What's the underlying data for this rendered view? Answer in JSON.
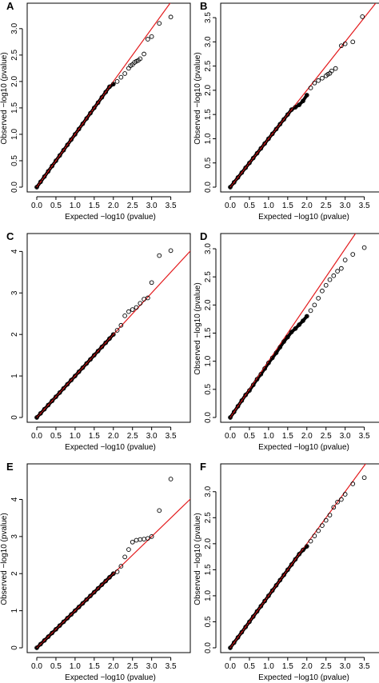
{
  "chart_data": [
    {
      "panel": "A",
      "type": "scatter",
      "xlabel": "Expected −log10 (pvalue)",
      "ylabel": "Observed −log10 (pvalue)",
      "xticks": [
        0.0,
        0.5,
        1.0,
        1.5,
        2.0,
        2.5,
        3.0,
        3.5
      ],
      "xtick_labels": [
        "0.0",
        "0.5",
        "1.0",
        "1.5",
        "2.0",
        "2.5",
        "3.0",
        "3.5"
      ],
      "yticks": [
        0.0,
        0.5,
        1.0,
        1.5,
        2.0,
        2.5,
        3.0
      ],
      "ytick_labels": [
        "0.0",
        "0.5",
        "1.0",
        "1.5",
        "2.0",
        "2.5",
        "3.0"
      ],
      "xlim": [
        0,
        3.55
      ],
      "ylim": [
        0,
        3.3
      ],
      "reference_line": {
        "color": "#e31a1c",
        "slope": 1,
        "intercept": 0
      },
      "points": [
        [
          0.0,
          0.0
        ],
        [
          0.1,
          0.1
        ],
        [
          0.2,
          0.2
        ],
        [
          0.3,
          0.3
        ],
        [
          0.4,
          0.4
        ],
        [
          0.5,
          0.5
        ],
        [
          0.6,
          0.6
        ],
        [
          0.7,
          0.7
        ],
        [
          0.8,
          0.8
        ],
        [
          0.9,
          0.9
        ],
        [
          1.0,
          1.0
        ],
        [
          1.1,
          1.1
        ],
        [
          1.2,
          1.2
        ],
        [
          1.3,
          1.3
        ],
        [
          1.4,
          1.4
        ],
        [
          1.5,
          1.5
        ],
        [
          1.6,
          1.6
        ],
        [
          1.7,
          1.7
        ],
        [
          1.8,
          1.8
        ],
        [
          1.9,
          1.9
        ],
        [
          2.0,
          1.95
        ],
        [
          2.1,
          2.0
        ],
        [
          2.2,
          2.08
        ],
        [
          2.3,
          2.15
        ],
        [
          2.4,
          2.25
        ],
        [
          2.45,
          2.3
        ],
        [
          2.5,
          2.32
        ],
        [
          2.55,
          2.36
        ],
        [
          2.6,
          2.38
        ],
        [
          2.65,
          2.4
        ],
        [
          2.7,
          2.43
        ],
        [
          2.8,
          2.52
        ],
        [
          2.9,
          2.8
        ],
        [
          3.0,
          2.85
        ],
        [
          3.2,
          3.1
        ],
        [
          3.5,
          3.22
        ]
      ]
    },
    {
      "panel": "B",
      "type": "scatter",
      "xlabel": "Expected −log10 (pvalue)",
      "ylabel": "Observed −log10 (pvalue)",
      "xticks": [
        0.0,
        0.5,
        1.0,
        1.5,
        2.0,
        2.5,
        3.0,
        3.5
      ],
      "xtick_labels": [
        "0.0",
        "0.5",
        "1.0",
        "1.5",
        "2.0",
        "2.5",
        "3.0",
        "3.5"
      ],
      "yticks": [
        0.0,
        0.5,
        1.0,
        1.5,
        2.0,
        2.5,
        3.0,
        3.5
      ],
      "ytick_labels": [
        "0.0",
        "0.5",
        "1.0",
        "1.5",
        "2.0",
        "2.5",
        "3.0",
        "3.5"
      ],
      "xlim": [
        0,
        3.55
      ],
      "ylim": [
        0,
        3.6
      ],
      "reference_line": {
        "color": "#e31a1c",
        "slope": 1,
        "intercept": 0
      },
      "points": [
        [
          0.0,
          0.0
        ],
        [
          0.1,
          0.1
        ],
        [
          0.2,
          0.2
        ],
        [
          0.3,
          0.3
        ],
        [
          0.4,
          0.4
        ],
        [
          0.5,
          0.5
        ],
        [
          0.6,
          0.6
        ],
        [
          0.7,
          0.7
        ],
        [
          0.8,
          0.8
        ],
        [
          0.9,
          0.9
        ],
        [
          1.0,
          1.0
        ],
        [
          1.1,
          1.1
        ],
        [
          1.2,
          1.2
        ],
        [
          1.3,
          1.3
        ],
        [
          1.4,
          1.4
        ],
        [
          1.5,
          1.5
        ],
        [
          1.6,
          1.6
        ],
        [
          1.7,
          1.65
        ],
        [
          1.8,
          1.7
        ],
        [
          1.9,
          1.78
        ],
        [
          2.0,
          1.9
        ],
        [
          2.1,
          2.05
        ],
        [
          2.2,
          2.15
        ],
        [
          2.3,
          2.2
        ],
        [
          2.4,
          2.25
        ],
        [
          2.5,
          2.3
        ],
        [
          2.55,
          2.33
        ],
        [
          2.6,
          2.35
        ],
        [
          2.65,
          2.4
        ],
        [
          2.75,
          2.45
        ],
        [
          2.9,
          2.92
        ],
        [
          3.0,
          2.96
        ],
        [
          3.2,
          3.0
        ],
        [
          3.45,
          3.52
        ]
      ]
    },
    {
      "panel": "C",
      "type": "scatter",
      "xlabel": "Expected −log10 (pvalue)",
      "ylabel": "",
      "xticks": [
        0.0,
        0.5,
        1.0,
        1.5,
        2.0,
        2.5,
        3.0,
        3.5
      ],
      "xtick_labels": [
        "0.0",
        "0.5",
        "1.0",
        "1.5",
        "2.0",
        "2.5",
        "3.0",
        "3.5"
      ],
      "yticks": [
        0,
        1,
        2,
        3,
        4
      ],
      "ytick_labels": [
        "0",
        "1",
        "2",
        "3",
        "4"
      ],
      "xlim": [
        0,
        3.55
      ],
      "ylim": [
        0,
        4.2
      ],
      "reference_line": {
        "color": "#e31a1c",
        "slope": 1,
        "intercept": 0
      },
      "points": [
        [
          0.0,
          0.0
        ],
        [
          0.1,
          0.1
        ],
        [
          0.2,
          0.2
        ],
        [
          0.3,
          0.3
        ],
        [
          0.4,
          0.4
        ],
        [
          0.5,
          0.5
        ],
        [
          0.6,
          0.6
        ],
        [
          0.7,
          0.7
        ],
        [
          0.8,
          0.8
        ],
        [
          0.9,
          0.9
        ],
        [
          1.0,
          1.0
        ],
        [
          1.1,
          1.1
        ],
        [
          1.2,
          1.2
        ],
        [
          1.3,
          1.3
        ],
        [
          1.4,
          1.4
        ],
        [
          1.5,
          1.5
        ],
        [
          1.6,
          1.6
        ],
        [
          1.7,
          1.7
        ],
        [
          1.8,
          1.8
        ],
        [
          1.9,
          1.9
        ],
        [
          2.0,
          2.0
        ],
        [
          2.1,
          2.1
        ],
        [
          2.2,
          2.22
        ],
        [
          2.3,
          2.45
        ],
        [
          2.4,
          2.55
        ],
        [
          2.5,
          2.6
        ],
        [
          2.6,
          2.65
        ],
        [
          2.7,
          2.75
        ],
        [
          2.8,
          2.85
        ],
        [
          2.9,
          2.88
        ],
        [
          3.0,
          3.25
        ],
        [
          3.2,
          3.9
        ],
        [
          3.5,
          4.02
        ]
      ]
    },
    {
      "panel": "D",
      "type": "scatter",
      "xlabel": "Expected −log10 (pvalue)",
      "ylabel": "Observed −log10 (pvalue)",
      "xticks": [
        0.0,
        0.5,
        1.0,
        1.5,
        2.0,
        2.5,
        3.0,
        3.5
      ],
      "xtick_labels": [
        "0.0",
        "0.5",
        "1.0",
        "1.5",
        "2.0",
        "2.5",
        "3.0",
        "3.5"
      ],
      "yticks": [
        0.0,
        0.5,
        1.0,
        1.5,
        2.0,
        2.5,
        3.0
      ],
      "ytick_labels": [
        "0.0",
        "0.5",
        "1.0",
        "1.5",
        "2.0",
        "2.5",
        "3.0"
      ],
      "xlim": [
        0,
        3.55
      ],
      "ylim": [
        0,
        3.1
      ],
      "reference_line": {
        "color": "#e31a1c",
        "slope": 1,
        "intercept": 0
      },
      "points": [
        [
          0.0,
          0.0
        ],
        [
          0.1,
          0.1
        ],
        [
          0.2,
          0.2
        ],
        [
          0.3,
          0.3
        ],
        [
          0.4,
          0.4
        ],
        [
          0.5,
          0.48
        ],
        [
          0.6,
          0.58
        ],
        [
          0.7,
          0.68
        ],
        [
          0.8,
          0.77
        ],
        [
          0.9,
          0.87
        ],
        [
          1.0,
          0.97
        ],
        [
          1.1,
          1.06
        ],
        [
          1.2,
          1.15
        ],
        [
          1.3,
          1.25
        ],
        [
          1.4,
          1.35
        ],
        [
          1.5,
          1.43
        ],
        [
          1.6,
          1.52
        ],
        [
          1.7,
          1.58
        ],
        [
          1.8,
          1.65
        ],
        [
          1.9,
          1.72
        ],
        [
          2.0,
          1.8
        ],
        [
          2.1,
          1.9
        ],
        [
          2.2,
          2.0
        ],
        [
          2.3,
          2.12
        ],
        [
          2.4,
          2.25
        ],
        [
          2.5,
          2.35
        ],
        [
          2.6,
          2.45
        ],
        [
          2.7,
          2.52
        ],
        [
          2.8,
          2.6
        ],
        [
          2.9,
          2.65
        ],
        [
          3.0,
          2.8
        ],
        [
          3.2,
          2.9
        ],
        [
          3.5,
          3.02
        ]
      ]
    },
    {
      "panel": "E",
      "type": "scatter",
      "xlabel": "Expected −log10 (pvalue)",
      "ylabel": "Observed −log10 (pvalue)",
      "xticks": [
        0.0,
        0.5,
        1.0,
        1.5,
        2.0,
        2.5,
        3.0,
        3.5
      ],
      "xtick_labels": [
        "0.0",
        "0.5",
        "1.0",
        "1.5",
        "2.0",
        "2.5",
        "3.0",
        "3.5"
      ],
      "yticks": [
        0,
        1,
        2,
        3,
        4
      ],
      "ytick_labels": [
        "0",
        "1",
        "2",
        "3",
        "4"
      ],
      "xlim": [
        0,
        3.55
      ],
      "ylim": [
        0,
        4.7
      ],
      "reference_line": {
        "color": "#e31a1c",
        "slope": 1,
        "intercept": 0
      },
      "points": [
        [
          0.0,
          0.0
        ],
        [
          0.1,
          0.1
        ],
        [
          0.2,
          0.2
        ],
        [
          0.3,
          0.3
        ],
        [
          0.4,
          0.4
        ],
        [
          0.5,
          0.5
        ],
        [
          0.6,
          0.6
        ],
        [
          0.7,
          0.7
        ],
        [
          0.8,
          0.8
        ],
        [
          0.9,
          0.9
        ],
        [
          1.0,
          1.0
        ],
        [
          1.1,
          1.1
        ],
        [
          1.2,
          1.2
        ],
        [
          1.3,
          1.3
        ],
        [
          1.4,
          1.4
        ],
        [
          1.5,
          1.5
        ],
        [
          1.6,
          1.6
        ],
        [
          1.7,
          1.7
        ],
        [
          1.8,
          1.8
        ],
        [
          1.9,
          1.9
        ],
        [
          2.0,
          2.0
        ],
        [
          2.1,
          2.05
        ],
        [
          2.2,
          2.2
        ],
        [
          2.3,
          2.45
        ],
        [
          2.4,
          2.65
        ],
        [
          2.5,
          2.85
        ],
        [
          2.6,
          2.9
        ],
        [
          2.7,
          2.92
        ],
        [
          2.8,
          2.93
        ],
        [
          2.9,
          2.95
        ],
        [
          3.0,
          3.0
        ],
        [
          3.2,
          3.7
        ],
        [
          3.5,
          4.55
        ]
      ]
    },
    {
      "panel": "F",
      "type": "scatter",
      "xlabel": "Expected −log10 (pvalue)",
      "ylabel": "Observed −log10 (pvalue)",
      "xticks": [
        0.0,
        0.5,
        1.0,
        1.5,
        2.0,
        2.5,
        3.0,
        3.5
      ],
      "xtick_labels": [
        "0.0",
        "0.5",
        "1.0",
        "1.5",
        "2.0",
        "2.5",
        "3.0",
        "3.5"
      ],
      "yticks": [
        0.0,
        0.5,
        1.0,
        1.5,
        2.0,
        2.5,
        3.0
      ],
      "ytick_labels": [
        "0.0",
        "0.5",
        "1.0",
        "1.5",
        "2.0",
        "2.5",
        "3.0"
      ],
      "xlim": [
        0,
        3.55
      ],
      "ylim": [
        0,
        3.35
      ],
      "reference_line": {
        "color": "#e31a1c",
        "slope": 1,
        "intercept": 0
      },
      "points": [
        [
          0.0,
          0.0
        ],
        [
          0.1,
          0.1
        ],
        [
          0.2,
          0.2
        ],
        [
          0.3,
          0.3
        ],
        [
          0.4,
          0.4
        ],
        [
          0.5,
          0.5
        ],
        [
          0.6,
          0.6
        ],
        [
          0.7,
          0.7
        ],
        [
          0.8,
          0.8
        ],
        [
          0.9,
          0.9
        ],
        [
          1.0,
          1.0
        ],
        [
          1.1,
          1.1
        ],
        [
          1.2,
          1.2
        ],
        [
          1.3,
          1.3
        ],
        [
          1.4,
          1.4
        ],
        [
          1.5,
          1.5
        ],
        [
          1.6,
          1.6
        ],
        [
          1.7,
          1.7
        ],
        [
          1.8,
          1.8
        ],
        [
          1.9,
          1.88
        ],
        [
          2.0,
          1.95
        ],
        [
          2.1,
          2.05
        ],
        [
          2.2,
          2.15
        ],
        [
          2.3,
          2.25
        ],
        [
          2.4,
          2.35
        ],
        [
          2.5,
          2.45
        ],
        [
          2.6,
          2.55
        ],
        [
          2.7,
          2.7
        ],
        [
          2.8,
          2.8
        ],
        [
          2.9,
          2.85
        ],
        [
          3.0,
          2.95
        ],
        [
          3.2,
          3.15
        ],
        [
          3.5,
          3.27
        ]
      ]
    }
  ]
}
